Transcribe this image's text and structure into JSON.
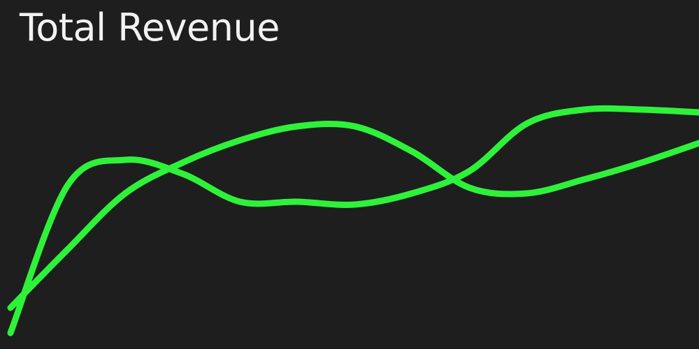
{
  "chart_data": {
    "type": "line",
    "title": "Total Revenue",
    "xlabel": "",
    "ylabel": "",
    "grid": false,
    "legend": "none",
    "x": [
      0,
      1,
      2,
      3,
      4,
      5,
      6,
      7,
      8,
      9,
      10,
      11,
      12
    ],
    "ylim": [
      0,
      100
    ],
    "series": [
      {
        "color": "#2ef23a",
        "values": [
          2,
          55,
          64,
          59,
          49,
          49,
          48,
          52,
          60,
          77,
          82,
          82,
          81
        ]
      },
      {
        "color": "#2ef23a",
        "values": [
          11,
          32,
          52,
          63,
          71,
          76,
          76,
          67,
          54,
          52,
          57,
          63,
          70
        ]
      }
    ]
  }
}
